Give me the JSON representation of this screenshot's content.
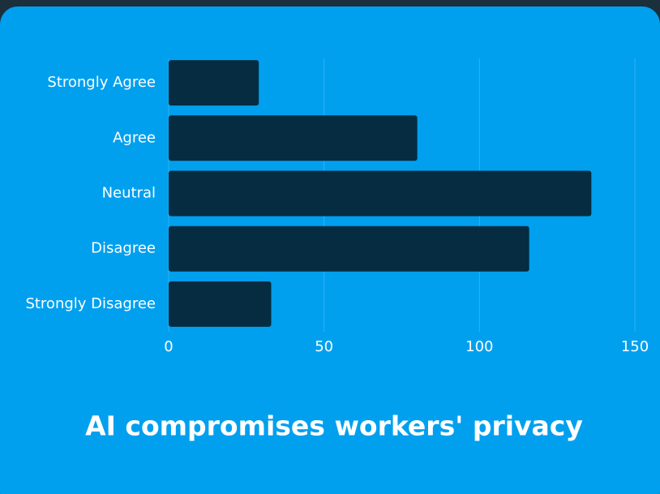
{
  "chart_data": {
    "type": "bar",
    "orientation": "horizontal",
    "title": "AI compromises workers' privacy",
    "categories": [
      "Strongly Agree",
      "Agree",
      "Neutral",
      "Disagree",
      "Strongly Disagree"
    ],
    "values": [
      29,
      80,
      136,
      116,
      33
    ],
    "color": "#052c41",
    "xlim": [
      0,
      150
    ],
    "xticks": [
      0,
      50,
      100,
      150
    ],
    "grid": true
  }
}
